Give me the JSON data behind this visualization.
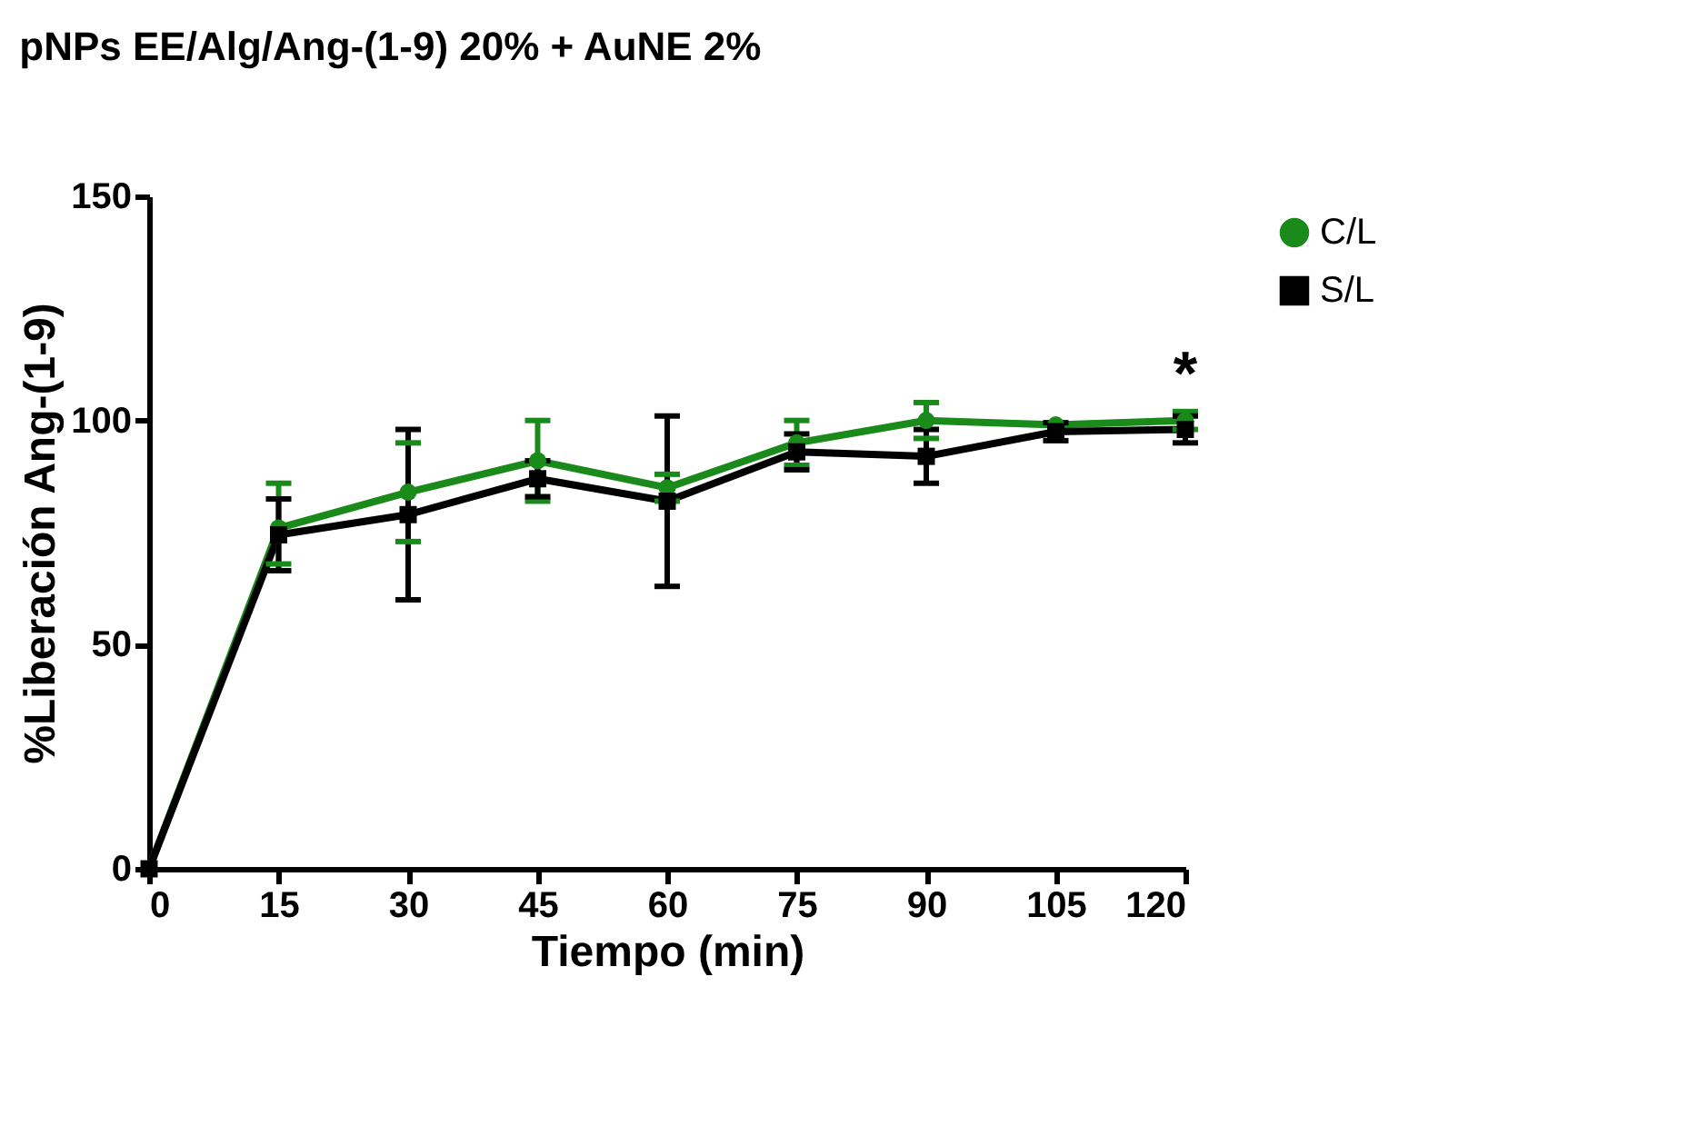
{
  "chart_data": {
    "type": "line",
    "title": "pNPs EE/Alg/Ang-(1-9) 20% + AuNE 2%",
    "xlabel": "Tiempo (min)",
    "ylabel": "%Liberación Ang-(1-9)",
    "x": [
      0,
      15,
      30,
      45,
      60,
      75,
      90,
      105,
      120
    ],
    "series": [
      {
        "name": "C/L",
        "color": "#1a8a1a",
        "marker": "circle",
        "values": [
          0,
          76,
          84,
          91,
          85,
          95,
          100,
          99,
          100
        ],
        "errors": [
          null,
          [
            68,
            86
          ],
          11,
          9,
          3,
          5,
          4,
          null,
          2
        ]
      },
      {
        "name": "S/L",
        "color": "#000000",
        "marker": "square",
        "values": [
          0,
          74.5,
          79,
          87,
          82,
          93,
          92,
          97.5,
          98
        ],
        "errors": [
          null,
          8,
          19,
          4,
          19,
          4,
          6,
          2,
          3
        ]
      }
    ],
    "xlim": [
      0,
      120
    ],
    "xticks": [
      0,
      15,
      30,
      45,
      60,
      75,
      90,
      105,
      120
    ],
    "ylim": [
      0,
      150
    ],
    "yticks": [
      0,
      50,
      100,
      150
    ],
    "annotations": [
      {
        "text": "*",
        "x": 120,
        "y": 103
      }
    ],
    "grid": false,
    "legend": "top right",
    "line_style": "solid"
  }
}
